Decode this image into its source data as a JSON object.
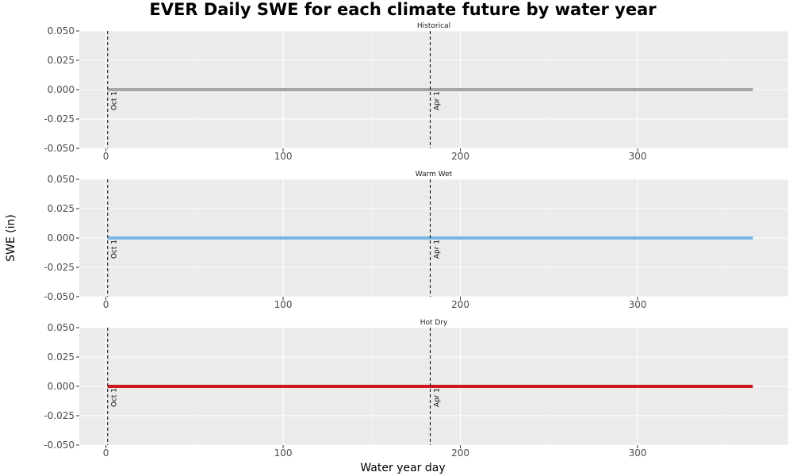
{
  "title": "EVER Daily SWE for each climate future by water year",
  "ylabel": "SWE (in)",
  "xlabel": "Water year day",
  "colors": {
    "panel_background": "#ebebeb",
    "grid_major": "#ffffff",
    "grid_minor": "#f4f4f4",
    "vline": "#000000"
  },
  "chart_data": [
    {
      "type": "line",
      "panel_title": "Historical",
      "series": [
        {
          "x": [
            1,
            365
          ],
          "y": [
            0,
            0
          ],
          "color": "#a6a6a6"
        }
      ],
      "xlim": [
        -15,
        385
      ],
      "ylim": [
        -0.05,
        0.05
      ],
      "xticks": [
        0,
        100,
        200,
        300
      ],
      "yticks": [
        -0.05,
        -0.025,
        0,
        0.025,
        0.05
      ],
      "xtick_labels": [
        "0",
        "100",
        "200",
        "300"
      ],
      "ytick_labels": [
        "-0.050",
        "-0.025",
        "0.000",
        "0.025",
        "0.050"
      ],
      "vlines": [
        {
          "x": 1,
          "label": "Oct 1"
        },
        {
          "x": 183,
          "label": "Apr 1"
        }
      ],
      "grid": true
    },
    {
      "type": "line",
      "panel_title": "Warm Wet",
      "series": [
        {
          "x": [
            1,
            365
          ],
          "y": [
            0,
            0
          ],
          "color": "#7ab6e3"
        }
      ],
      "xlim": [
        -15,
        385
      ],
      "ylim": [
        -0.05,
        0.05
      ],
      "xticks": [
        0,
        100,
        200,
        300
      ],
      "yticks": [
        -0.05,
        -0.025,
        0,
        0.025,
        0.05
      ],
      "xtick_labels": [
        "0",
        "100",
        "200",
        "300"
      ],
      "ytick_labels": [
        "-0.050",
        "-0.025",
        "0.000",
        "0.025",
        "0.050"
      ],
      "vlines": [
        {
          "x": 1,
          "label": "Oct 1"
        },
        {
          "x": 183,
          "label": "Apr 1"
        }
      ],
      "grid": true
    },
    {
      "type": "line",
      "panel_title": "Hot Dry",
      "series": [
        {
          "x": [
            1,
            365
          ],
          "y": [
            0,
            0
          ],
          "color": "#d0161e"
        }
      ],
      "xlim": [
        -15,
        385
      ],
      "ylim": [
        -0.05,
        0.05
      ],
      "xticks": [
        0,
        100,
        200,
        300
      ],
      "yticks": [
        -0.05,
        -0.025,
        0,
        0.025,
        0.05
      ],
      "xtick_labels": [
        "0",
        "100",
        "200",
        "300"
      ],
      "ytick_labels": [
        "-0.050",
        "-0.025",
        "0.000",
        "0.025",
        "0.050"
      ],
      "vlines": [
        {
          "x": 1,
          "label": "Oct 1"
        },
        {
          "x": 183,
          "label": "Apr 1"
        }
      ],
      "grid": true
    }
  ]
}
